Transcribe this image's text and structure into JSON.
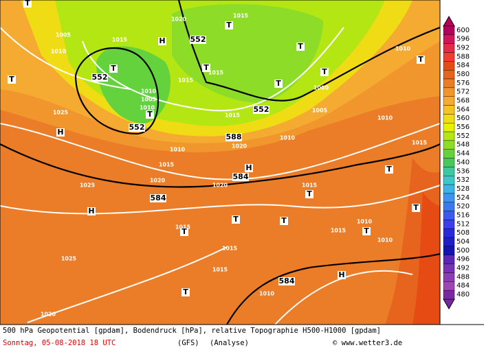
{
  "caption": {
    "line1": "500 hPa Geopotential [gpdam], Bodendruck [hPa], relative Topographie H500-H1000 [gpdam]",
    "date": "Sonntag, 05-08-2018  18 UTC",
    "model": "(GFS)",
    "run": "(Analyse)",
    "credit": "© www.wetter3.de"
  },
  "legend": {
    "labels": [
      600,
      596,
      592,
      588,
      584,
      580,
      576,
      572,
      568,
      564,
      560,
      556,
      552,
      548,
      544,
      540,
      536,
      532,
      528,
      524,
      520,
      516,
      512,
      508,
      504,
      500,
      496,
      492,
      488,
      484,
      480
    ],
    "colors": [
      "#b4005a",
      "#d2145a",
      "#e6284b",
      "#f03c32",
      "#e64b14",
      "#e6641e",
      "#eb7d28",
      "#f0962d",
      "#f5aa32",
      "#f5c328",
      "#f0dc14",
      "#e6f000",
      "#b4e614",
      "#8cdc28",
      "#64d23c",
      "#46c85a",
      "#3cc8a0",
      "#3cc8c8",
      "#3cb4e6",
      "#3c96f0",
      "#3c78f0",
      "#3c5af0",
      "#3c3cf0",
      "#2828dc",
      "#1e1ec8",
      "#1414b4",
      "#5a28b4",
      "#7832b4",
      "#8c3cb4",
      "#a046b4",
      "#7828a0"
    ]
  },
  "map": {
    "geopotential": [
      "552",
      "552",
      "552",
      "552",
      "588",
      "584",
      "584",
      "584"
    ],
    "systems": [
      "H",
      "H",
      "H",
      "H",
      "H",
      "T",
      "T",
      "T",
      "T",
      "T",
      "T",
      "T",
      "T",
      "T",
      "T",
      "T",
      "T",
      "T",
      "T",
      "T",
      "T",
      "T",
      "T"
    ],
    "isobars": [
      "1005",
      "1010",
      "1015",
      "1010",
      "1005",
      "1010",
      "1025",
      "1010",
      "1015",
      "1020",
      "1025",
      "1020",
      "1010",
      "1020",
      "1015",
      "1005",
      "1010",
      "1010",
      "1000",
      "1015",
      "1010",
      "1015",
      "1010",
      "1015",
      "1015",
      "1010",
      "1025",
      "1020",
      "1015",
      "1015",
      "1015",
      "1015",
      "1015",
      "1020"
    ]
  }
}
